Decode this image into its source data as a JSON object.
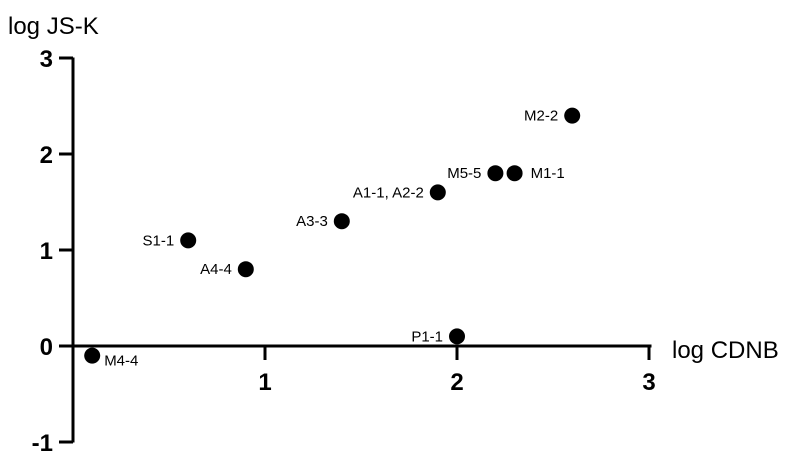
{
  "chart_data": {
    "type": "scatter",
    "title": "",
    "xlabel": "log CDNB",
    "ylabel": "log JS-K",
    "xlim": [
      0,
      3
    ],
    "ylim": [
      -1,
      3
    ],
    "x_ticks": [
      1,
      2,
      3
    ],
    "y_ticks": [
      -1,
      0,
      1,
      2,
      3
    ],
    "grid": false,
    "points": [
      {
        "label": "M2-2",
        "x": 2.6,
        "y": 2.4
      },
      {
        "label": "M5-5",
        "x": 2.2,
        "y": 1.8
      },
      {
        "label": "M1-1",
        "x": 2.3,
        "y": 1.8
      },
      {
        "label": "A1-1, A2-2",
        "x": 1.9,
        "y": 1.6
      },
      {
        "label": "A3-3",
        "x": 1.4,
        "y": 1.3
      },
      {
        "label": "S1-1",
        "x": 0.6,
        "y": 1.1
      },
      {
        "label": "A4-4",
        "x": 0.9,
        "y": 0.8
      },
      {
        "label": "P1-1",
        "x": 2.0,
        "y": 0.1
      },
      {
        "label": "M4-4",
        "x": 0.1,
        "y": -0.1
      }
    ]
  }
}
